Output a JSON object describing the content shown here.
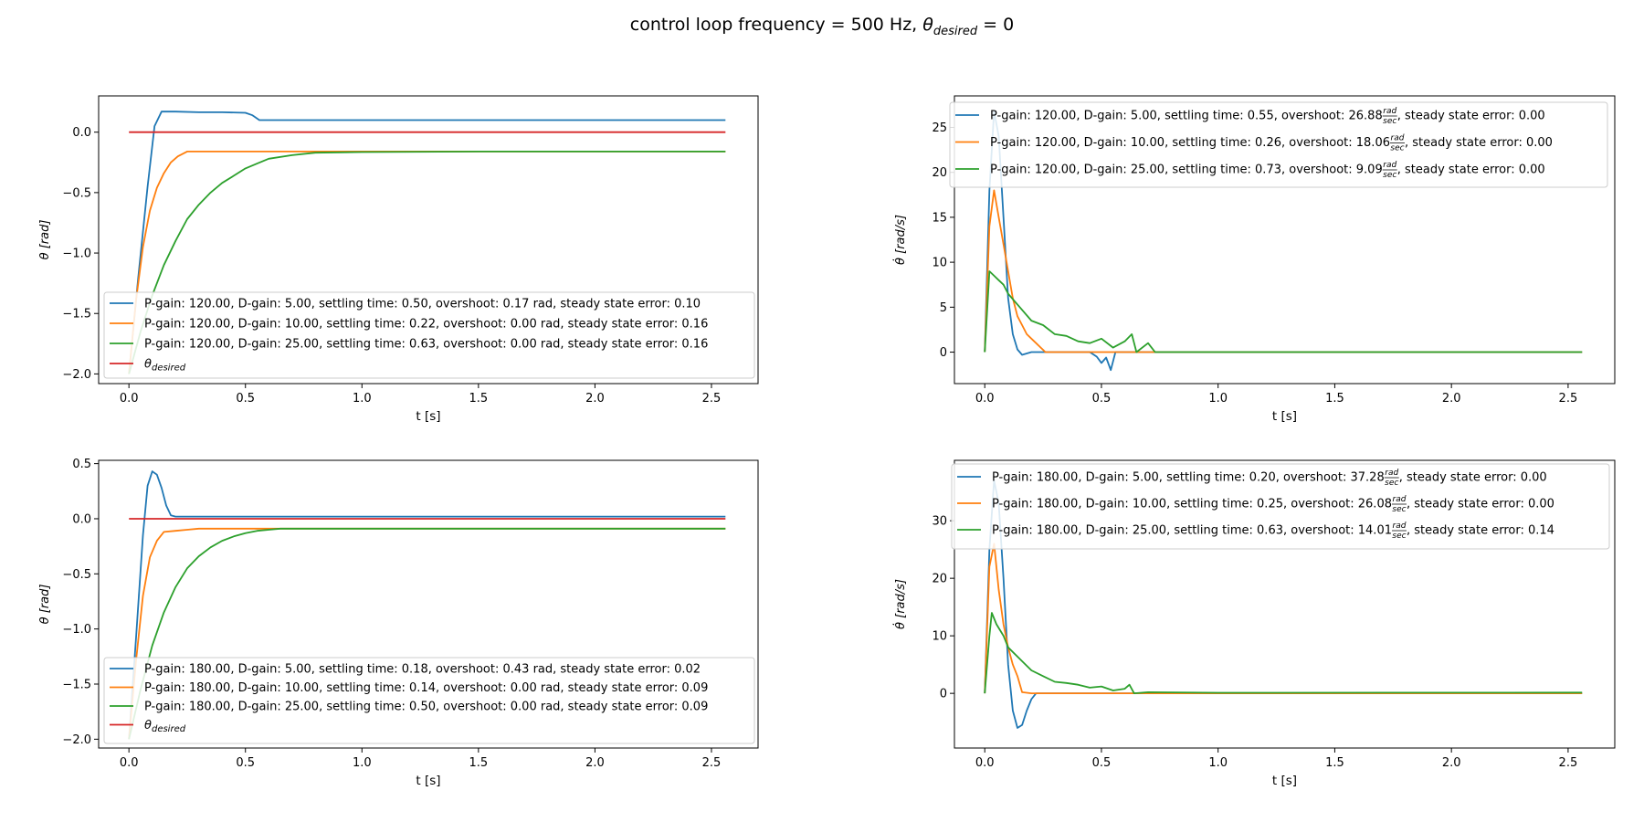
{
  "title": {
    "prefix": "control loop frequency = 500 Hz, ",
    "theta": "θ",
    "sub": "desired",
    "suffix": " = 0"
  },
  "colors": {
    "blue": "#1f77b4",
    "orange": "#ff7f0e",
    "green": "#2ca02c",
    "red": "#d62728"
  },
  "chart_data": [
    {
      "type": "line",
      "xlabel": "t [s]",
      "ylabel": "θ [rad]",
      "xlim": [
        -0.13,
        2.7
      ],
      "ylim": [
        -2.08,
        0.3
      ],
      "xticks": [
        0.0,
        0.5,
        1.0,
        1.5,
        2.0,
        2.5
      ],
      "xtick_labels": [
        "0.0",
        "0.5",
        "1.0",
        "1.5",
        "2.0",
        "2.5"
      ],
      "yticks": [
        -2.0,
        -1.5,
        -1.0,
        -0.5,
        0.0
      ],
      "ytick_labels": [
        "−2.0",
        "−1.5",
        "−1.0",
        "−0.5",
        "0.0"
      ],
      "legend_position": "lower-left",
      "series": [
        {
          "name": "P-gain: 120.00, D-gain: 5.00, settling time: 0.50, overshoot: 0.17 rad, steady state error: 0.10",
          "color": "blue",
          "x": [
            0,
            0.04,
            0.08,
            0.11,
            0.14,
            0.2,
            0.3,
            0.4,
            0.5,
            0.53,
            0.56,
            1.0,
            1.5,
            2.0,
            2.56
          ],
          "y": [
            -2.0,
            -1.2,
            -0.45,
            0.05,
            0.17,
            0.17,
            0.165,
            0.165,
            0.16,
            0.14,
            0.1,
            0.1,
            0.1,
            0.1,
            0.1
          ]
        },
        {
          "name": "P-gain: 120.00, D-gain: 10.00, settling time: 0.22, overshoot: 0.00 rad, steady state error: 0.16",
          "color": "orange",
          "x": [
            0,
            0.03,
            0.06,
            0.09,
            0.12,
            0.15,
            0.18,
            0.21,
            0.25,
            0.3,
            0.5,
            1.0,
            1.5,
            2.0,
            2.56
          ],
          "y": [
            -2.0,
            -1.4,
            -0.95,
            -0.65,
            -0.46,
            -0.34,
            -0.25,
            -0.2,
            -0.16,
            -0.16,
            -0.16,
            -0.16,
            -0.16,
            -0.16,
            -0.16
          ]
        },
        {
          "name": "P-gain: 120.00, D-gain: 25.00, settling time: 0.63, overshoot: 0.00 rad, steady state error: 0.16",
          "color": "green",
          "x": [
            0,
            0.05,
            0.1,
            0.15,
            0.2,
            0.25,
            0.3,
            0.35,
            0.4,
            0.45,
            0.5,
            0.55,
            0.6,
            0.7,
            0.8,
            1.0,
            1.5,
            2.0,
            2.56
          ],
          "y": [
            -2.0,
            -1.65,
            -1.35,
            -1.1,
            -0.9,
            -0.72,
            -0.6,
            -0.5,
            -0.42,
            -0.36,
            -0.3,
            -0.26,
            -0.22,
            -0.19,
            -0.17,
            -0.165,
            -0.16,
            -0.16,
            -0.16
          ]
        },
        {
          "name": "θdesired",
          "color": "red",
          "legend_sub": "desired",
          "x": [
            0,
            2.56
          ],
          "y": [
            0,
            0
          ]
        }
      ]
    },
    {
      "type": "line",
      "xlabel": "t [s]",
      "ylabel": "θ̇ [rad/s]",
      "xlim": [
        -0.13,
        2.7
      ],
      "ylim": [
        -3.5,
        28.5
      ],
      "xticks": [
        0.0,
        0.5,
        1.0,
        1.5,
        2.0,
        2.5
      ],
      "xtick_labels": [
        "0.0",
        "0.5",
        "1.0",
        "1.5",
        "2.0",
        "2.5"
      ],
      "yticks": [
        0,
        5,
        10,
        15,
        20,
        25
      ],
      "ytick_labels": [
        "0",
        "5",
        "10",
        "15",
        "20",
        "25"
      ],
      "legend_position": "top",
      "series": [
        {
          "name": "P-gain: 120.00, D-gain: 5.00, settling time: 0.55, overshoot: 26.88 rad/sec, steady state error: 0.00",
          "color": "blue",
          "legend_parts": [
            "P-gain: 120.00, D-gain: 5.00, settling time: 0.55, overshoot: 26.88 ",
            ", steady state error: 0.00"
          ],
          "x": [
            0,
            0.02,
            0.04,
            0.06,
            0.08,
            0.1,
            0.12,
            0.14,
            0.16,
            0.2,
            0.3,
            0.45,
            0.48,
            0.5,
            0.52,
            0.54,
            0.56,
            0.6,
            1.0,
            2.56
          ],
          "y": [
            0,
            18,
            26.8,
            24,
            15,
            6,
            2,
            0.3,
            -0.3,
            0,
            0,
            0,
            -0.5,
            -1.2,
            -0.6,
            -2.0,
            0,
            0,
            0,
            0
          ]
        },
        {
          "name": "P-gain: 120.00, D-gain: 10.00, settling time: 0.26, overshoot: 18.06 rad/sec, steady state error: 0.00",
          "color": "orange",
          "legend_parts": [
            "P-gain: 120.00, D-gain: 10.00, settling time: 0.26, overshoot: 18.06 ",
            ", steady state error: 0.00"
          ],
          "x": [
            0,
            0.02,
            0.04,
            0.06,
            0.08,
            0.1,
            0.12,
            0.14,
            0.16,
            0.18,
            0.2,
            0.22,
            0.24,
            0.26,
            0.3,
            1.0,
            2.56
          ],
          "y": [
            0,
            14,
            18,
            15,
            12,
            9,
            6,
            4,
            3,
            2,
            1.5,
            1,
            0.5,
            0,
            0,
            0,
            0
          ]
        },
        {
          "name": "P-gain: 120.00, D-gain: 25.00, settling time: 0.73, overshoot: 9.09 rad/sec, steady state error: 0.00",
          "color": "green",
          "legend_parts": [
            "P-gain: 120.00, D-gain: 25.00, settling time: 0.73, overshoot: 9.09 ",
            ", steady state error: 0.00"
          ],
          "x": [
            0,
            0.02,
            0.04,
            0.06,
            0.08,
            0.1,
            0.15,
            0.2,
            0.25,
            0.3,
            0.35,
            0.4,
            0.45,
            0.5,
            0.55,
            0.6,
            0.63,
            0.65,
            0.7,
            0.73,
            0.8,
            1.0,
            2.56
          ],
          "y": [
            0,
            9,
            8.5,
            8,
            7.5,
            6.5,
            5,
            3.5,
            3,
            2,
            1.8,
            1.2,
            1,
            1.5,
            0.5,
            1.2,
            2,
            0,
            1,
            0,
            0,
            0,
            0
          ]
        }
      ]
    },
    {
      "type": "line",
      "xlabel": "t [s]",
      "ylabel": "θ [rad]",
      "xlim": [
        -0.13,
        2.7
      ],
      "ylim": [
        -2.08,
        0.53
      ],
      "xticks": [
        0.0,
        0.5,
        1.0,
        1.5,
        2.0,
        2.5
      ],
      "xtick_labels": [
        "0.0",
        "0.5",
        "1.0",
        "1.5",
        "2.0",
        "2.5"
      ],
      "yticks": [
        -2.0,
        -1.5,
        -1.0,
        -0.5,
        0.0,
        0.5
      ],
      "ytick_labels": [
        "−2.0",
        "−1.5",
        "−1.0",
        "−0.5",
        "0.0",
        "0.5"
      ],
      "legend_position": "lower-left",
      "series": [
        {
          "name": "P-gain: 180.00, D-gain: 5.00, settling time: 0.18, overshoot: 0.43 rad, steady state error: 0.02",
          "color": "blue",
          "x": [
            0,
            0.03,
            0.06,
            0.08,
            0.1,
            0.12,
            0.14,
            0.16,
            0.18,
            0.2,
            0.3,
            1.0,
            2.56
          ],
          "y": [
            -2.0,
            -1.1,
            -0.15,
            0.3,
            0.43,
            0.4,
            0.28,
            0.12,
            0.03,
            0.02,
            0.02,
            0.02,
            0.02
          ]
        },
        {
          "name": "P-gain: 180.00, D-gain: 10.00, settling time: 0.14, overshoot: 0.00 rad, steady state error: 0.09",
          "color": "orange",
          "x": [
            0,
            0.03,
            0.06,
            0.09,
            0.12,
            0.15,
            0.2,
            0.25,
            0.3,
            1.0,
            2.56
          ],
          "y": [
            -2.0,
            -1.3,
            -0.7,
            -0.35,
            -0.2,
            -0.12,
            -0.11,
            -0.1,
            -0.09,
            -0.09,
            -0.09
          ]
        },
        {
          "name": "P-gain: 180.00, D-gain: 25.00, settling time: 0.50, overshoot: 0.00 rad, steady state error: 0.09",
          "color": "green",
          "x": [
            0,
            0.05,
            0.1,
            0.15,
            0.2,
            0.25,
            0.3,
            0.35,
            0.4,
            0.45,
            0.5,
            0.55,
            0.6,
            0.65,
            1.0,
            2.56
          ],
          "y": [
            -2.0,
            -1.55,
            -1.15,
            -0.85,
            -0.62,
            -0.45,
            -0.34,
            -0.26,
            -0.2,
            -0.16,
            -0.13,
            -0.11,
            -0.1,
            -0.09,
            -0.09,
            -0.09
          ]
        },
        {
          "name": "θdesired",
          "color": "red",
          "legend_sub": "desired",
          "x": [
            0,
            2.56
          ],
          "y": [
            0,
            0
          ]
        }
      ]
    },
    {
      "type": "line",
      "xlabel": "t [s]",
      "ylabel": "θ̇ [rad/s]",
      "xlim": [
        -0.13,
        2.7
      ],
      "ylim": [
        -9.5,
        40.5
      ],
      "xticks": [
        0.0,
        0.5,
        1.0,
        1.5,
        2.0,
        2.5
      ],
      "xtick_labels": [
        "0.0",
        "0.5",
        "1.0",
        "1.5",
        "2.0",
        "2.5"
      ],
      "yticks": [
        0,
        10,
        20,
        30
      ],
      "ytick_labels": [
        "0",
        "10",
        "20",
        "30"
      ],
      "legend_position": "top",
      "series": [
        {
          "name": "P-gain: 180.00, D-gain: 5.00, settling time: 0.20, overshoot: 37.28 rad/sec, steady state error: 0.00",
          "color": "blue",
          "legend_parts": [
            "P-gain: 180.00, D-gain: 5.00, settling time: 0.20, overshoot: 37.28 ",
            ", steady state error: 0.00"
          ],
          "x": [
            0,
            0.02,
            0.04,
            0.06,
            0.08,
            0.1,
            0.12,
            0.14,
            0.16,
            0.18,
            0.2,
            0.22,
            0.3,
            1.0,
            2.56
          ],
          "y": [
            0,
            25,
            37,
            33,
            20,
            5,
            -3,
            -6,
            -5.5,
            -3,
            -1,
            0,
            0,
            0,
            0
          ]
        },
        {
          "name": "P-gain: 180.00, D-gain: 10.00, settling time: 0.25, overshoot: 26.08 rad/sec, steady state error: 0.00",
          "color": "orange",
          "legend_parts": [
            "P-gain: 180.00, D-gain: 10.00, settling time: 0.25, overshoot: 26.08 ",
            ", steady state error: 0.00"
          ],
          "x": [
            0,
            0.02,
            0.04,
            0.06,
            0.08,
            0.1,
            0.12,
            0.14,
            0.16,
            0.2,
            0.25,
            1.0,
            2.56
          ],
          "y": [
            0,
            22,
            26,
            18,
            12,
            8,
            5,
            3,
            0.2,
            0,
            0,
            0,
            0
          ]
        },
        {
          "name": "P-gain: 180.00, D-gain: 25.00, settling time: 0.63, overshoot: 14.01 rad/sec, steady state error: 0.14",
          "color": "green",
          "legend_parts": [
            "P-gain: 180.00, D-gain: 25.00, settling time: 0.63, overshoot: 14.01 ",
            ", steady state error: 0.14"
          ],
          "x": [
            0,
            0.02,
            0.03,
            0.05,
            0.08,
            0.1,
            0.15,
            0.2,
            0.25,
            0.3,
            0.35,
            0.4,
            0.45,
            0.5,
            0.55,
            0.6,
            0.62,
            0.64,
            0.7,
            1.0,
            2.56
          ],
          "y": [
            0,
            10,
            14,
            12,
            10,
            8,
            6,
            4,
            3,
            2,
            1.8,
            1.5,
            1,
            1.2,
            0.5,
            0.8,
            1.5,
            0,
            0.2,
            0.1,
            0.14
          ]
        }
      ]
    }
  ]
}
